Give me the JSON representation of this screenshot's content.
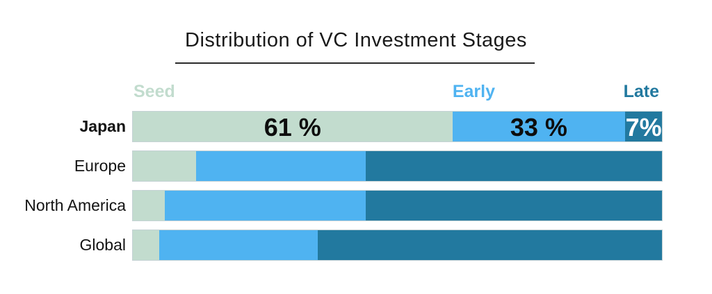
{
  "title": "Distribution of VC Investment Stages",
  "palette": {
    "seed": "#c2dcce",
    "early": "#4fb3f1",
    "late": "#22799f",
    "text_dark": "#0d0d0d",
    "text_on_late": "#ffffff",
    "title_color": "#1a1a1a"
  },
  "legend": {
    "items": [
      {
        "id": "seed",
        "label": "Seed",
        "color": "#c2dcce"
      },
      {
        "id": "early",
        "label": "Early",
        "color": "#4fb3f1"
      },
      {
        "id": "late",
        "label": "Late",
        "color": "#22799f"
      }
    ]
  },
  "chart_data": {
    "type": "bar",
    "orientation": "horizontal",
    "stacked": true,
    "title": "Distribution of VC Investment Stages",
    "categories": [
      "Japan",
      "Europe",
      "North America",
      "Global"
    ],
    "series": [
      {
        "name": "Seed",
        "color": "#c2dcce",
        "values": [
          61,
          12,
          6,
          5
        ]
      },
      {
        "name": "Early",
        "color": "#4fb3f1",
        "values": [
          33,
          32,
          38,
          30
        ]
      },
      {
        "name": "Late",
        "color": "#22799f",
        "values": [
          7,
          56,
          56,
          65
        ]
      }
    ],
    "xlim": [
      0,
      100
    ],
    "axes_hidden": true,
    "grid": false,
    "legend_position": "top",
    "value_labels": {
      "Japan": [
        "61 %",
        "33 %",
        "7%"
      ]
    }
  },
  "rows": [
    {
      "label": "Japan",
      "emphasis": true,
      "segments": [
        {
          "stage": "seed",
          "value": 61,
          "label": "61 %"
        },
        {
          "stage": "early",
          "value": 33,
          "label": "33 %"
        },
        {
          "stage": "late",
          "value": 7,
          "label": "7%"
        }
      ]
    },
    {
      "label": "Europe",
      "emphasis": false,
      "segments": [
        {
          "stage": "seed",
          "value": 12,
          "label": ""
        },
        {
          "stage": "early",
          "value": 32,
          "label": ""
        },
        {
          "stage": "late",
          "value": 56,
          "label": ""
        }
      ]
    },
    {
      "label": "North America",
      "emphasis": false,
      "segments": [
        {
          "stage": "seed",
          "value": 6,
          "label": ""
        },
        {
          "stage": "early",
          "value": 38,
          "label": ""
        },
        {
          "stage": "late",
          "value": 56,
          "label": ""
        }
      ]
    },
    {
      "label": "Global",
      "emphasis": false,
      "segments": [
        {
          "stage": "seed",
          "value": 5,
          "label": ""
        },
        {
          "stage": "early",
          "value": 30,
          "label": ""
        },
        {
          "stage": "late",
          "value": 65,
          "label": ""
        }
      ]
    }
  ]
}
